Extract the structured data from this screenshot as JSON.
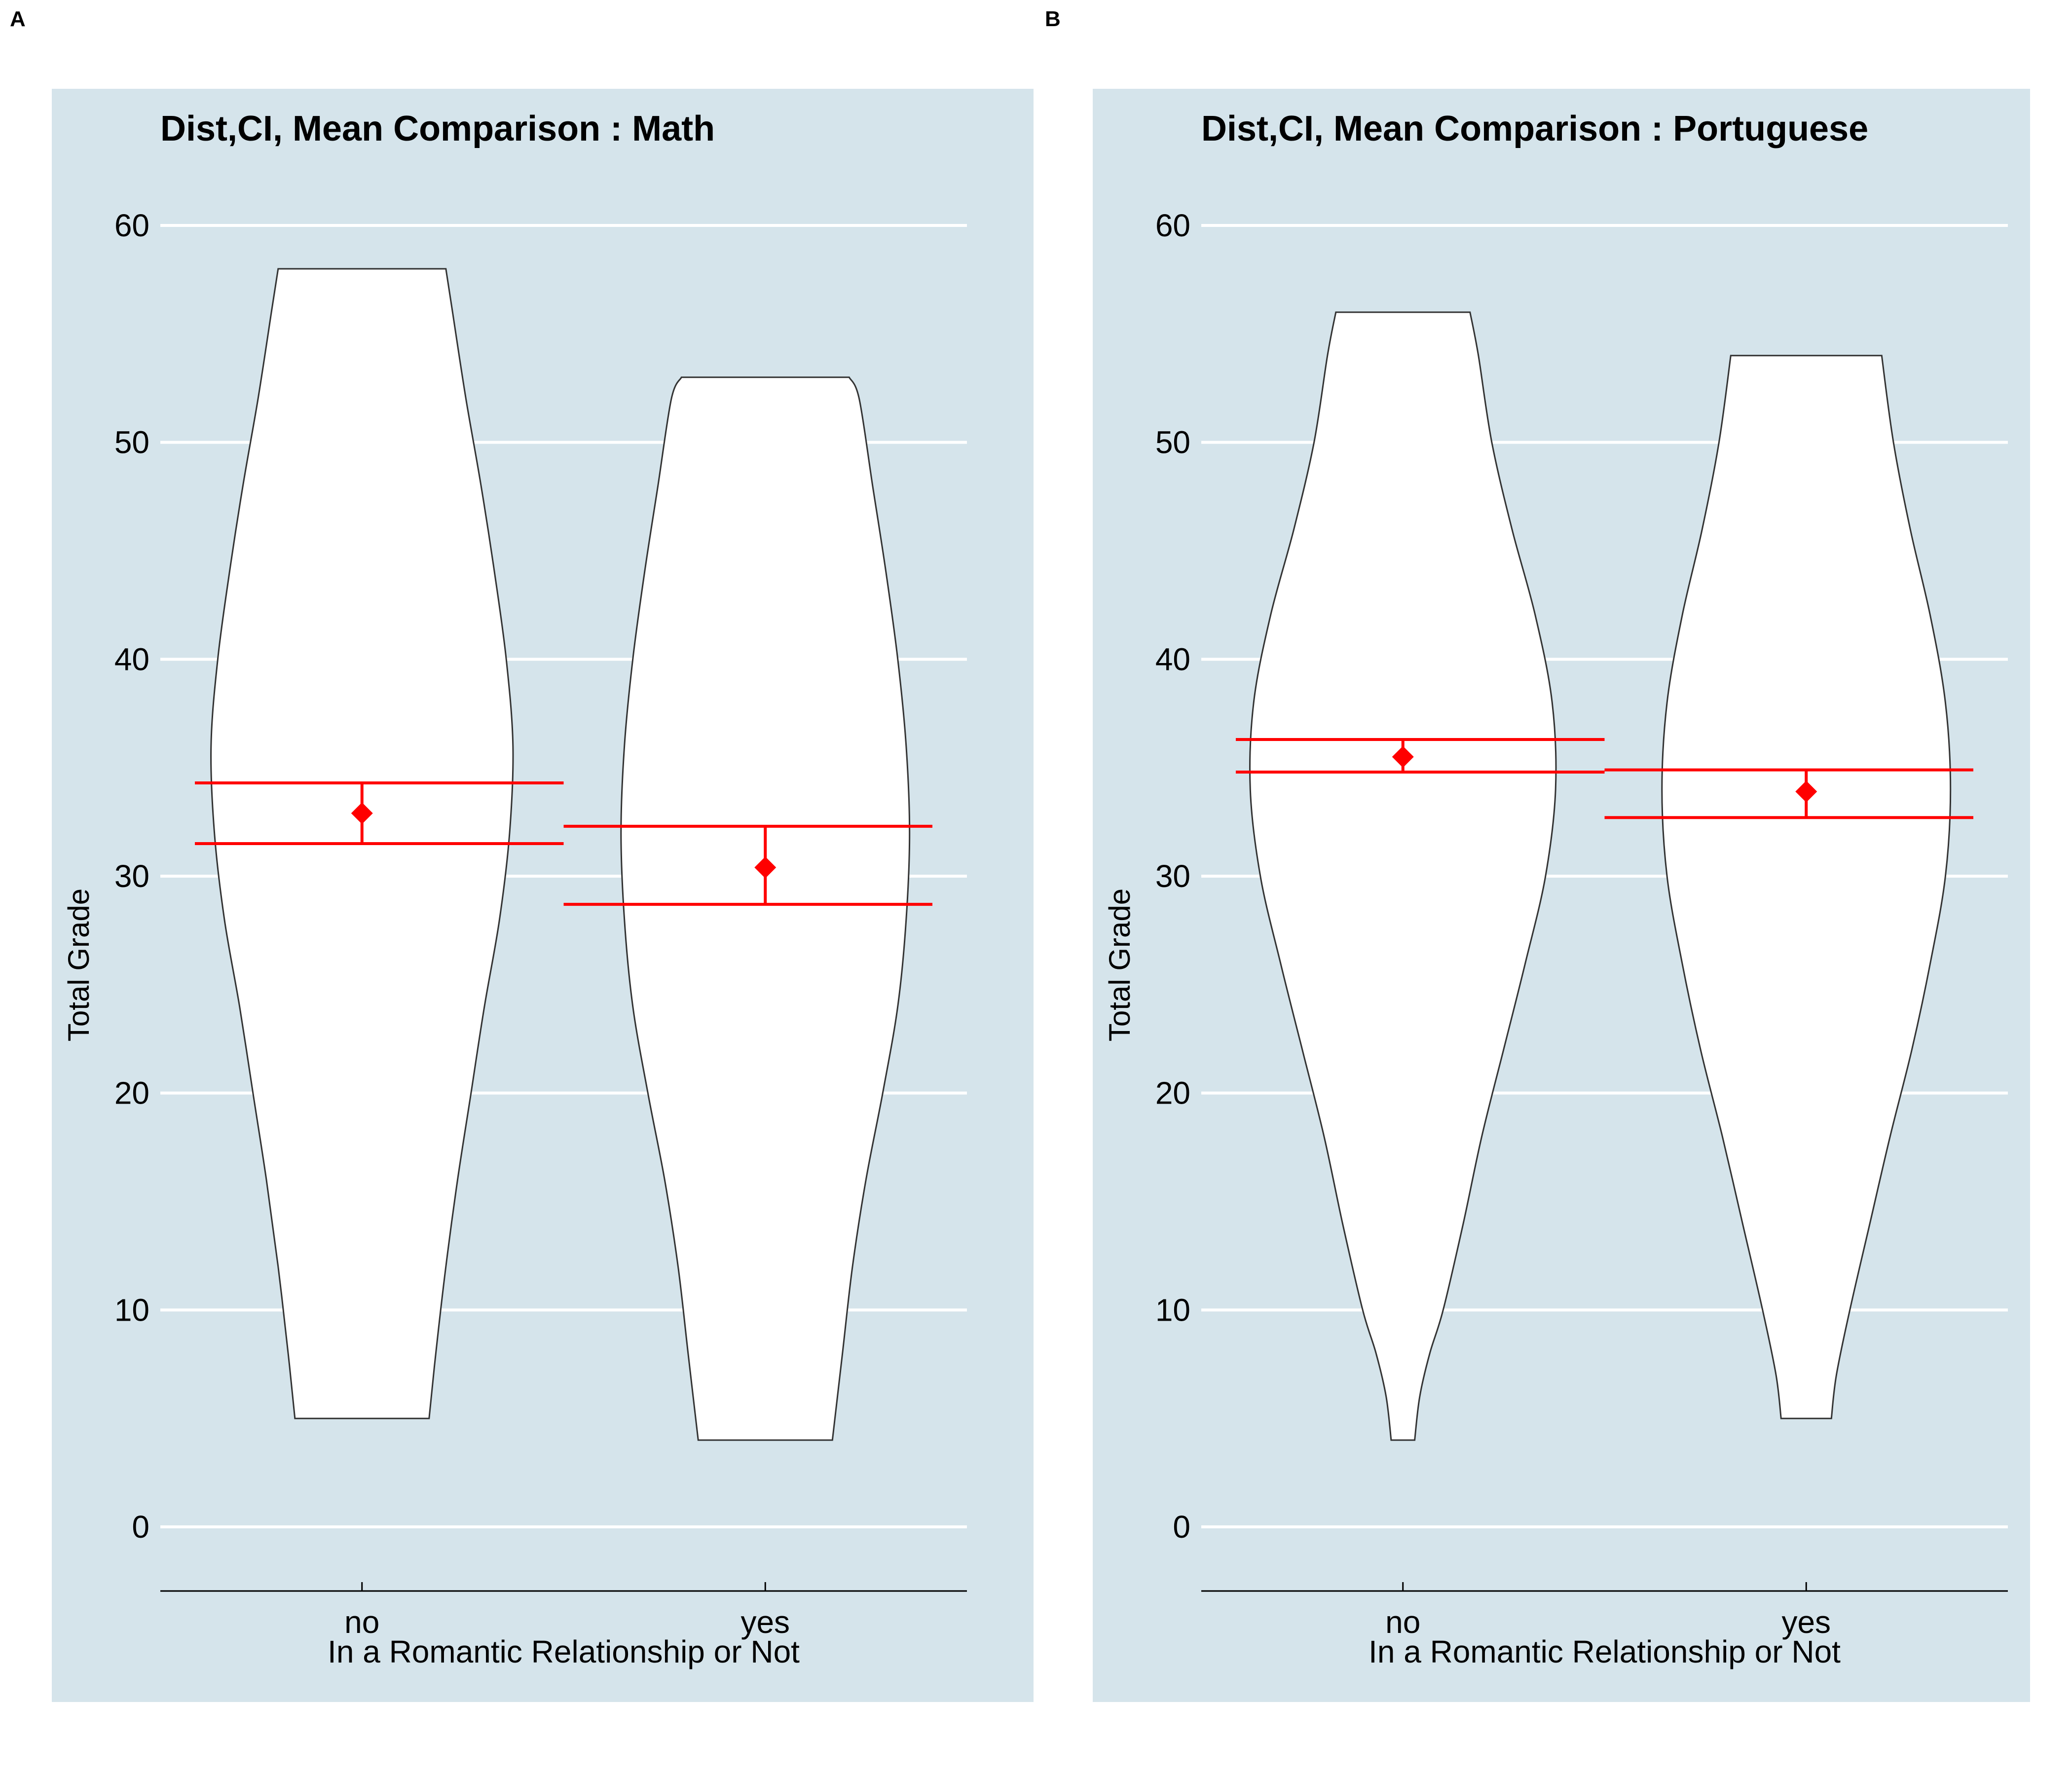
{
  "figure": {
    "panel_a_letter": "A",
    "panel_b_letter": "B",
    "panel_bg": "#d5e4eb",
    "grid_color": "#ffffff",
    "ci_color": "#ff0000",
    "violin_fill": "#ffffff",
    "violin_stroke": "#333333"
  },
  "chart_data": [
    {
      "type": "violin",
      "title": "Dist,CI, Mean Comparison : Math",
      "xlabel": "In a Romantic Relationship or Not",
      "ylabel": "Total Grade",
      "ylim": [
        0,
        60
      ],
      "yticks": [
        0,
        10,
        20,
        30,
        40,
        50,
        60
      ],
      "grid": true,
      "categories": [
        "no",
        "yes"
      ],
      "series": [
        {
          "min": 5,
          "max": 58,
          "mean": 32.9,
          "ci": [
            31.5,
            34.3
          ],
          "profile": [
            [
              5,
              0.4
            ],
            [
              8,
              0.44
            ],
            [
              12,
              0.5
            ],
            [
              16,
              0.57
            ],
            [
              20,
              0.65
            ],
            [
              24,
              0.73
            ],
            [
              28,
              0.82
            ],
            [
              32,
              0.88
            ],
            [
              36,
              0.9
            ],
            [
              40,
              0.86
            ],
            [
              44,
              0.79
            ],
            [
              48,
              0.71
            ],
            [
              52,
              0.62
            ],
            [
              56,
              0.54
            ],
            [
              58,
              0.5
            ]
          ]
        },
        {
          "min": 4,
          "max": 53,
          "mean": 30.4,
          "ci": [
            28.7,
            32.3
          ],
          "profile": [
            [
              4,
              0.4
            ],
            [
              8,
              0.46
            ],
            [
              12,
              0.52
            ],
            [
              16,
              0.6
            ],
            [
              20,
              0.7
            ],
            [
              24,
              0.79
            ],
            [
              28,
              0.84
            ],
            [
              32,
              0.86
            ],
            [
              36,
              0.84
            ],
            [
              40,
              0.79
            ],
            [
              44,
              0.72
            ],
            [
              48,
              0.64
            ],
            [
              52,
              0.56
            ],
            [
              53,
              0.5
            ]
          ]
        }
      ]
    },
    {
      "type": "violin",
      "title": "Dist,CI, Mean Comparison : Portuguese",
      "xlabel": "In a Romantic Relationship or Not",
      "ylabel": "Total Grade",
      "ylim": [
        0,
        60
      ],
      "yticks": [
        0,
        10,
        20,
        30,
        40,
        50,
        60
      ],
      "grid": true,
      "categories": [
        "no",
        "yes"
      ],
      "series": [
        {
          "min": 4,
          "max": 56,
          "mean": 35.5,
          "ci": [
            34.8,
            36.3
          ],
          "profile": [
            [
              4,
              0.07
            ],
            [
              6,
              0.1
            ],
            [
              8,
              0.16
            ],
            [
              10,
              0.24
            ],
            [
              14,
              0.36
            ],
            [
              18,
              0.47
            ],
            [
              22,
              0.6
            ],
            [
              26,
              0.73
            ],
            [
              30,
              0.85
            ],
            [
              34,
              0.91
            ],
            [
              38,
              0.89
            ],
            [
              42,
              0.79
            ],
            [
              46,
              0.65
            ],
            [
              50,
              0.53
            ],
            [
              54,
              0.45
            ],
            [
              56,
              0.4
            ]
          ]
        },
        {
          "min": 5,
          "max": 54,
          "mean": 33.9,
          "ci": [
            32.7,
            34.9
          ],
          "profile": [
            [
              5,
              0.15
            ],
            [
              7,
              0.18
            ],
            [
              10,
              0.26
            ],
            [
              14,
              0.38
            ],
            [
              18,
              0.5
            ],
            [
              22,
              0.63
            ],
            [
              26,
              0.74
            ],
            [
              30,
              0.83
            ],
            [
              34,
              0.86
            ],
            [
              38,
              0.83
            ],
            [
              42,
              0.74
            ],
            [
              46,
              0.62
            ],
            [
              50,
              0.52
            ],
            [
              54,
              0.45
            ]
          ]
        }
      ]
    }
  ]
}
